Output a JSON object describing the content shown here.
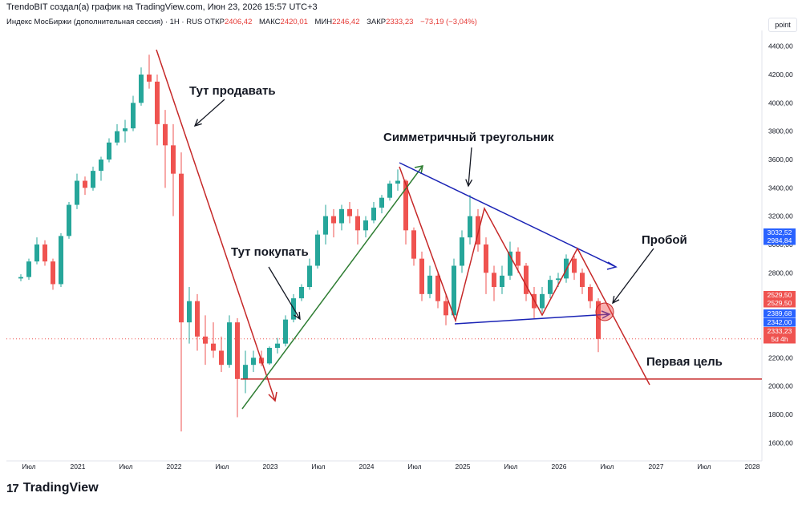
{
  "header": {
    "credit": "TrendoBIT создал(а) график на TradingView.com, Июн 23, 2026 15:57 UTC+3",
    "symbol": "Индекс МосБиржи (дополнительная сессия) · 1H · RUS",
    "open_label": "ОТКР",
    "open": "2406,42",
    "high_label": "МАКС",
    "high": "2420,01",
    "low_label": "МИН",
    "low": "2246,42",
    "close_label": "ЗАКР",
    "close": "2333,23",
    "change": "−73,19 (−3,04%)"
  },
  "price_unit": "point",
  "footer": {
    "logo": "17",
    "brand": "TradingView"
  },
  "colors": {
    "up": "#26a69a",
    "down": "#ef5350",
    "red_line": "#c62828",
    "green_line": "#2e7d32",
    "blue_line": "#1a23b5",
    "badge_blue": "#2962ff",
    "badge_red": "#ef5350"
  },
  "chart_data": {
    "type": "candlestick",
    "y_ticks": [
      "1600,00",
      "1800,00",
      "2000,00",
      "2200,00",
      "2400,00",
      "2600,00",
      "2800,00",
      "3000,00",
      "3200,00",
      "3400,00",
      "3600,00",
      "3800,00",
      "4000,00",
      "4200,00",
      "4400,00"
    ],
    "x_ticks": [
      "Июл",
      "2021",
      "Июл",
      "2022",
      "Июл",
      "2023",
      "Июл",
      "2024",
      "Июл",
      "2025",
      "Июл",
      "2026",
      "Июл",
      "2027",
      "Июл",
      "2028"
    ],
    "ylim": [
      1500,
      4500
    ],
    "series": [
      {
        "x": "2020-06",
        "o": 2760,
        "h": 2790,
        "l": 2740,
        "c": 2770
      },
      {
        "x": "2020-07",
        "o": 2770,
        "h": 2900,
        "l": 2750,
        "c": 2880
      },
      {
        "x": "2020-08",
        "o": 2880,
        "h": 3050,
        "l": 2860,
        "c": 3000
      },
      {
        "x": "2020-09",
        "o": 3000,
        "h": 3030,
        "l": 2850,
        "c": 2880
      },
      {
        "x": "2020-10",
        "o": 2880,
        "h": 2900,
        "l": 2680,
        "c": 2720
      },
      {
        "x": "2020-11",
        "o": 2720,
        "h": 3080,
        "l": 2700,
        "c": 3060
      },
      {
        "x": "2020-12",
        "o": 3060,
        "h": 3300,
        "l": 3040,
        "c": 3280
      },
      {
        "x": "2021-01",
        "o": 3280,
        "h": 3500,
        "l": 3250,
        "c": 3450
      },
      {
        "x": "2021-02",
        "o": 3450,
        "h": 3480,
        "l": 3350,
        "c": 3400
      },
      {
        "x": "2021-03",
        "o": 3400,
        "h": 3550,
        "l": 3380,
        "c": 3520
      },
      {
        "x": "2021-04",
        "o": 3520,
        "h": 3620,
        "l": 3450,
        "c": 3600
      },
      {
        "x": "2021-05",
        "o": 3600,
        "h": 3750,
        "l": 3580,
        "c": 3720
      },
      {
        "x": "2021-06",
        "o": 3720,
        "h": 3850,
        "l": 3700,
        "c": 3800
      },
      {
        "x": "2021-07",
        "o": 3800,
        "h": 3880,
        "l": 3720,
        "c": 3820
      },
      {
        "x": "2021-08",
        "o": 3820,
        "h": 4050,
        "l": 3800,
        "c": 4000
      },
      {
        "x": "2021-09",
        "o": 4000,
        "h": 4250,
        "l": 3980,
        "c": 4200
      },
      {
        "x": "2021-10",
        "o": 4200,
        "h": 4340,
        "l": 4100,
        "c": 4150
      },
      {
        "x": "2021-11",
        "o": 4150,
        "h": 4200,
        "l": 3700,
        "c": 3850
      },
      {
        "x": "2021-12",
        "o": 3850,
        "h": 3950,
        "l": 3400,
        "c": 3700
      },
      {
        "x": "2022-01",
        "o": 3700,
        "h": 3850,
        "l": 3200,
        "c": 3500
      },
      {
        "x": "2022-02",
        "o": 3500,
        "h": 3650,
        "l": 1680,
        "c": 2450
      },
      {
        "x": "2022-03",
        "o": 2450,
        "h": 2700,
        "l": 2300,
        "c": 2600
      },
      {
        "x": "2022-04",
        "o": 2600,
        "h": 2650,
        "l": 2250,
        "c": 2350
      },
      {
        "x": "2022-05",
        "o": 2350,
        "h": 2500,
        "l": 2150,
        "c": 2300
      },
      {
        "x": "2022-06",
        "o": 2300,
        "h": 2450,
        "l": 2200,
        "c": 2250
      },
      {
        "x": "2022-07",
        "o": 2250,
        "h": 2350,
        "l": 2100,
        "c": 2150
      },
      {
        "x": "2022-08",
        "o": 2150,
        "h": 2500,
        "l": 2130,
        "c": 2450
      },
      {
        "x": "2022-09",
        "o": 2450,
        "h": 2480,
        "l": 1780,
        "c": 2050
      },
      {
        "x": "2022-10",
        "o": 2050,
        "h": 2250,
        "l": 1950,
        "c": 2150
      },
      {
        "x": "2022-11",
        "o": 2150,
        "h": 2250,
        "l": 2100,
        "c": 2200
      },
      {
        "x": "2022-12",
        "o": 2200,
        "h": 2250,
        "l": 2140,
        "c": 2160
      },
      {
        "x": "2023-01",
        "o": 2160,
        "h": 2280,
        "l": 2150,
        "c": 2270
      },
      {
        "x": "2023-02",
        "o": 2270,
        "h": 2340,
        "l": 2230,
        "c": 2300
      },
      {
        "x": "2023-03",
        "o": 2300,
        "h": 2500,
        "l": 2280,
        "c": 2470
      },
      {
        "x": "2023-04",
        "o": 2470,
        "h": 2650,
        "l": 2450,
        "c": 2620
      },
      {
        "x": "2023-05",
        "o": 2620,
        "h": 2720,
        "l": 2600,
        "c": 2700
      },
      {
        "x": "2023-06",
        "o": 2700,
        "h": 2900,
        "l": 2680,
        "c": 2850
      },
      {
        "x": "2023-07",
        "o": 2850,
        "h": 3100,
        "l": 2830,
        "c": 3070
      },
      {
        "x": "2023-08",
        "o": 3070,
        "h": 3280,
        "l": 3000,
        "c": 3200
      },
      {
        "x": "2023-09",
        "o": 3200,
        "h": 3250,
        "l": 3050,
        "c": 3150
      },
      {
        "x": "2023-10",
        "o": 3150,
        "h": 3280,
        "l": 3100,
        "c": 3250
      },
      {
        "x": "2023-11",
        "o": 3250,
        "h": 3300,
        "l": 3150,
        "c": 3200
      },
      {
        "x": "2023-12",
        "o": 3200,
        "h": 3250,
        "l": 3000,
        "c": 3100
      },
      {
        "x": "2024-01",
        "o": 3100,
        "h": 3200,
        "l": 3050,
        "c": 3170
      },
      {
        "x": "2024-02",
        "o": 3170,
        "h": 3300,
        "l": 3150,
        "c": 3260
      },
      {
        "x": "2024-03",
        "o": 3260,
        "h": 3350,
        "l": 3220,
        "c": 3330
      },
      {
        "x": "2024-04",
        "o": 3330,
        "h": 3450,
        "l": 3310,
        "c": 3430
      },
      {
        "x": "2024-05",
        "o": 3430,
        "h": 3530,
        "l": 3380,
        "c": 3450
      },
      {
        "x": "2024-06",
        "o": 3450,
        "h": 3460,
        "l": 3000,
        "c": 3100
      },
      {
        "x": "2024-07",
        "o": 3100,
        "h": 3120,
        "l": 2850,
        "c": 2900
      },
      {
        "x": "2024-08",
        "o": 2900,
        "h": 2950,
        "l": 2600,
        "c": 2650
      },
      {
        "x": "2024-09",
        "o": 2650,
        "h": 2850,
        "l": 2620,
        "c": 2780
      },
      {
        "x": "2024-10",
        "o": 2780,
        "h": 2800,
        "l": 2550,
        "c": 2600
      },
      {
        "x": "2024-11",
        "o": 2600,
        "h": 2650,
        "l": 2430,
        "c": 2500
      },
      {
        "x": "2024-12",
        "o": 2500,
        "h": 2900,
        "l": 2480,
        "c": 2850
      },
      {
        "x": "2025-01",
        "o": 2850,
        "h": 3100,
        "l": 2800,
        "c": 3050
      },
      {
        "x": "2025-02",
        "o": 3050,
        "h": 3350,
        "l": 3000,
        "c": 3200
      },
      {
        "x": "2025-03",
        "o": 3200,
        "h": 3250,
        "l": 2950,
        "c": 3000
      },
      {
        "x": "2025-04",
        "o": 3000,
        "h": 3050,
        "l": 2650,
        "c": 2800
      },
      {
        "x": "2025-05",
        "o": 2800,
        "h": 2850,
        "l": 2600,
        "c": 2700
      },
      {
        "x": "2025-06",
        "o": 2700,
        "h": 2850,
        "l": 2650,
        "c": 2780
      },
      {
        "x": "2025-07",
        "o": 2780,
        "h": 3020,
        "l": 2750,
        "c": 2950
      },
      {
        "x": "2025-08",
        "o": 2950,
        "h": 2980,
        "l": 2800,
        "c": 2850
      },
      {
        "x": "2025-09",
        "o": 2850,
        "h": 2870,
        "l": 2600,
        "c": 2650
      },
      {
        "x": "2025-10",
        "o": 2650,
        "h": 2700,
        "l": 2480,
        "c": 2550
      },
      {
        "x": "2025-11",
        "o": 2550,
        "h": 2700,
        "l": 2520,
        "c": 2650
      },
      {
        "x": "2025-12",
        "o": 2650,
        "h": 2780,
        "l": 2620,
        "c": 2750
      },
      {
        "x": "2026-01",
        "o": 2750,
        "h": 2800,
        "l": 2700,
        "c": 2760
      },
      {
        "x": "2026-02",
        "o": 2760,
        "h": 2930,
        "l": 2730,
        "c": 2900
      },
      {
        "x": "2026-03",
        "o": 2900,
        "h": 2920,
        "l": 2750,
        "c": 2800
      },
      {
        "x": "2026-04",
        "o": 2800,
        "h": 2830,
        "l": 2650,
        "c": 2700
      },
      {
        "x": "2026-05",
        "o": 2700,
        "h": 2720,
        "l": 2550,
        "c": 2600
      },
      {
        "x": "2026-06",
        "o": 2600,
        "h": 2620,
        "l": 2240,
        "c": 2333
      }
    ],
    "price_badges": [
      {
        "label": "3032,52",
        "value": 3032.52,
        "color": "blue"
      },
      {
        "label": "2984,84",
        "value": 2984.84,
        "color": "blue"
      },
      {
        "label": "2529,50",
        "value": 2529.5,
        "color": "red"
      },
      {
        "label": "2529,50",
        "value": 2529.5,
        "color": "red"
      },
      {
        "label": "2389,68",
        "value": 2389.68,
        "color": "blue"
      },
      {
        "label": "2342,00",
        "value": 2342.0,
        "color": "blue"
      },
      {
        "label": "2333,23",
        "value": 2333.23,
        "color": "red"
      },
      {
        "label": "5d 4h",
        "value": 2333.23,
        "color": "red"
      }
    ],
    "annotations": {
      "sell": "Тут продавать",
      "buy": "Тут покупать",
      "triangle": "Симметричный треугольник",
      "breakout": "Пробой",
      "target": "Первая цель"
    },
    "target_level": 2050
  }
}
